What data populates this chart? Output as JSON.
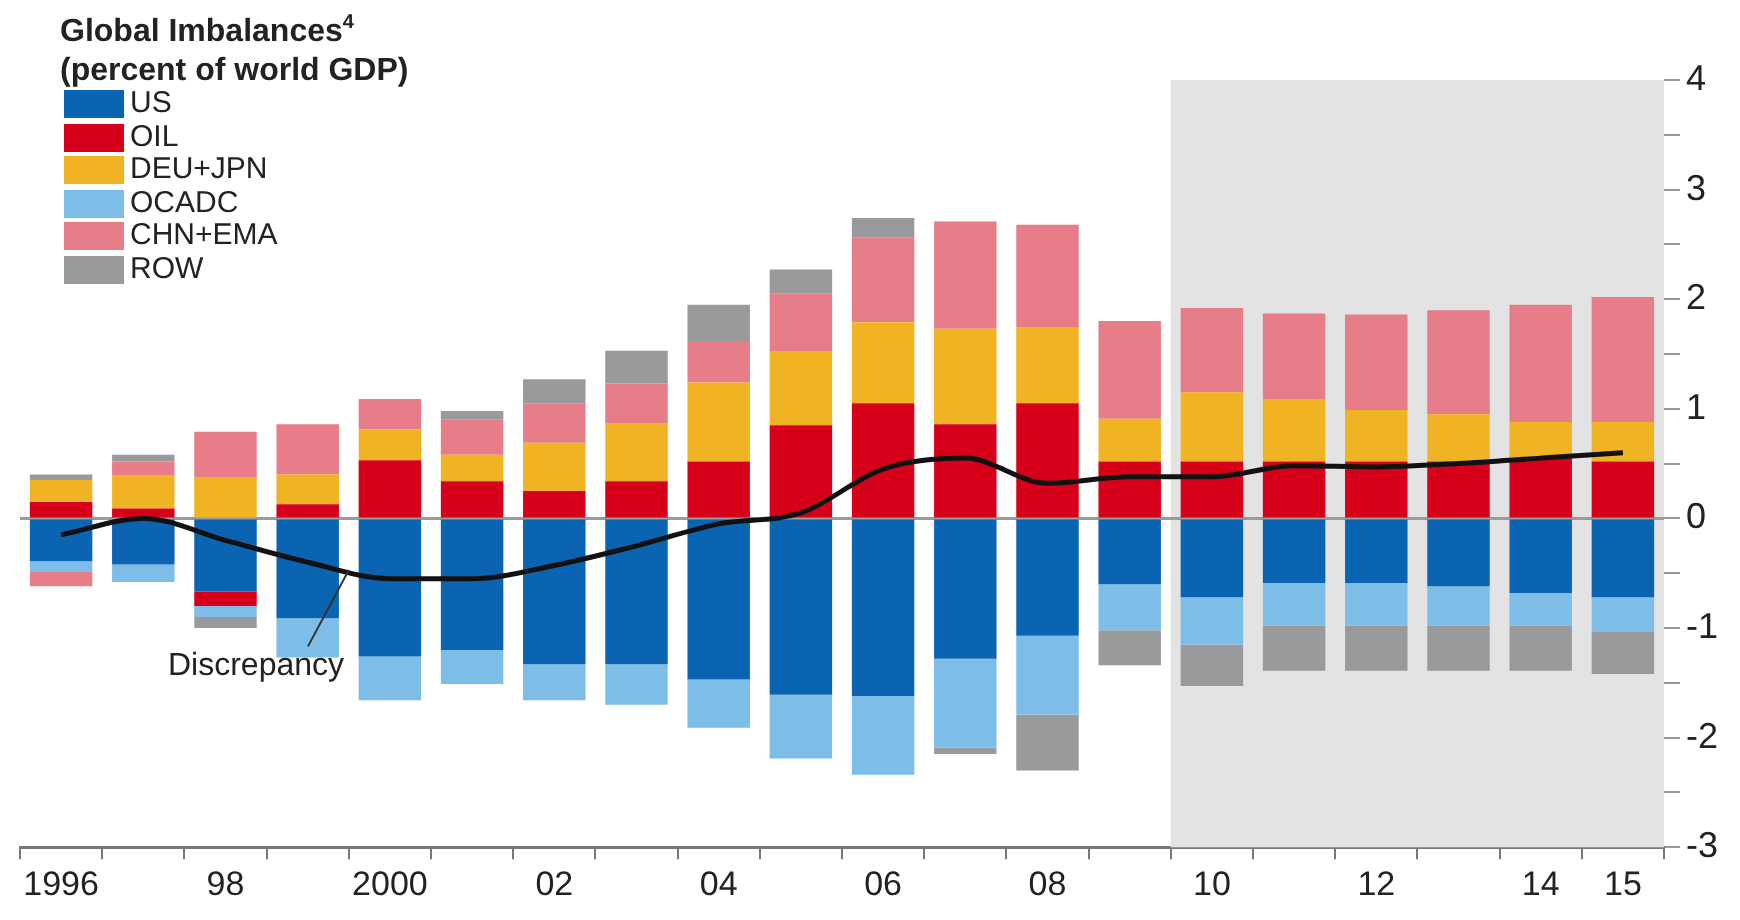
{
  "chart_data": {
    "type": "bar",
    "title": "Global Imbalances$^{4}$",
    "subtitle": "(percent of world GDP)",
    "categories": [
      "1996",
      null,
      "98",
      null,
      "2000",
      null,
      "02",
      null,
      "04",
      null,
      "06",
      null,
      "08",
      null,
      "10",
      null,
      "12",
      null,
      "14",
      "15"
    ],
    "stacked": true,
    "legend": "top left",
    "grid": false,
    "tick_labels": "xy",
    "ylim": [
      -3,
      4
    ],
    "yticks": [
      -3,
      {
        "value": -2.5,
        "label": null
      },
      -2,
      {
        "value": -1.5,
        "label": null
      },
      -1,
      {
        "value": -0.5,
        "label": null
      },
      0,
      {
        "value": 0.5,
        "label": null
      },
      1,
      {
        "value": 1.5,
        "label": null
      },
      2,
      {
        "value": 2.5,
        "label": null
      },
      3,
      {
        "value": 3.5,
        "label": null
      },
      4
    ],
    "series": [
      {
        "name": "US",
        "color": "#0b64b1",
        "values": [
          -0.39,
          -0.42,
          -0.67,
          -0.91,
          -1.26,
          -1.2,
          -1.33,
          -1.33,
          -1.47,
          -1.61,
          -1.62,
          -1.28,
          -1.07,
          -0.6,
          -0.72,
          -0.59,
          -0.59,
          -0.62,
          -0.68,
          -0.72
        ]
      },
      {
        "name": "OIL",
        "color": "#d7001a",
        "values": [
          0.15,
          0.09,
          -0.13,
          0.13,
          0.53,
          0.34,
          0.25,
          0.34,
          0.52,
          0.85,
          1.05,
          0.86,
          1.05,
          0.52,
          0.52,
          0.52,
          0.52,
          0.52,
          0.55,
          0.52
        ]
      },
      {
        "name": "DEU+JPN",
        "color": "#f0b323",
        "values": [
          0.2,
          0.3,
          0.37,
          0.27,
          0.28,
          0.24,
          0.44,
          0.53,
          0.72,
          0.67,
          0.74,
          0.87,
          0.69,
          0.39,
          0.63,
          0.57,
          0.47,
          0.43,
          0.33,
          0.36
        ]
      },
      {
        "name": "OCADC",
        "color": "#7dbde8",
        "values": [
          -0.1,
          -0.16,
          -0.1,
          -0.36,
          -0.4,
          -0.31,
          -0.33,
          -0.37,
          -0.44,
          -0.58,
          -0.72,
          -0.81,
          -0.72,
          -0.42,
          -0.43,
          -0.39,
          -0.39,
          -0.36,
          -0.3,
          -0.31
        ]
      },
      {
        "name": "CHN+EMA",
        "color": "#e87d8a",
        "values": [
          -0.13,
          0.13,
          0.42,
          0.46,
          0.28,
          0.32,
          0.36,
          0.36,
          0.37,
          0.53,
          0.77,
          0.98,
          0.94,
          0.89,
          0.77,
          0.78,
          0.87,
          0.95,
          1.07,
          1.14
        ]
      },
      {
        "name": "ROW",
        "color": "#999a9c",
        "values": [
          0.05,
          0.06,
          -0.1,
          null,
          null,
          0.08,
          0.22,
          0.3,
          0.34,
          0.22,
          0.18,
          -0.06,
          -0.51,
          -0.32,
          -0.38,
          -0.41,
          -0.41,
          -0.41,
          -0.41,
          -0.39
        ]
      },
      {
        "type": "line",
        "color": "#111111",
        "values": [
          -0.15,
          0,
          -0.2,
          -0.4,
          -0.55,
          -0.55,
          -0.43,
          -0.25,
          -0.05,
          0.05,
          0.45,
          0.55,
          0.32,
          0.38,
          0.38,
          0.48,
          0.47,
          0.5,
          0.55,
          0.6
        ]
      }
    ],
    "bands": [
      {
        "axis": "x",
        "from": "10",
        "to": "15",
        "color": "#e3e3e3"
      }
    ],
    "ref_lines": [
      {
        "axis": "y",
        "value": 0,
        "color": "#9a9a9a"
      }
    ],
    "annotations": [
      {
        "text": "Discrepancy",
        "y": -0.47
      }
    ]
  }
}
